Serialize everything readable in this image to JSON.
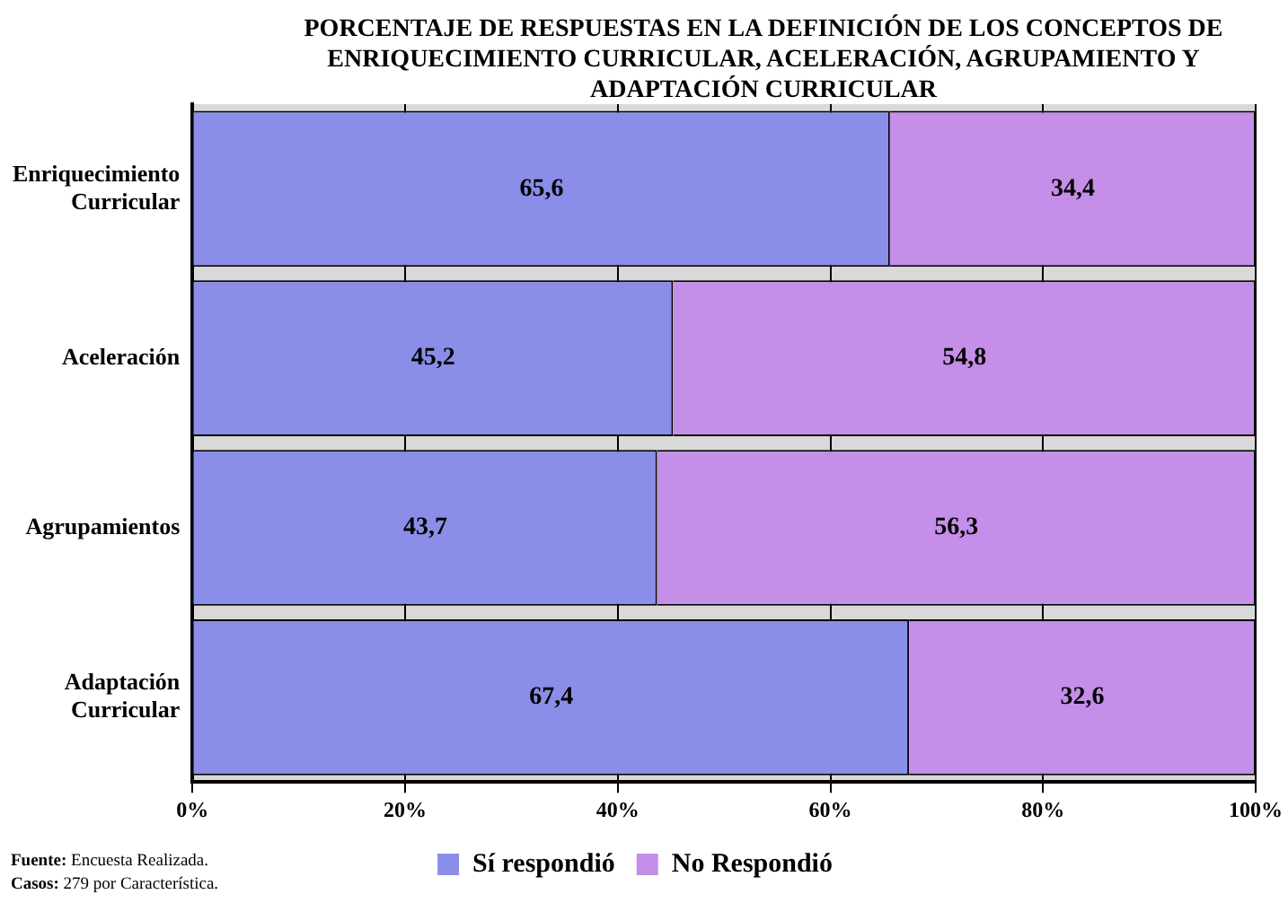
{
  "chart_data": {
    "type": "bar",
    "orientation": "horizontal",
    "stacked": true,
    "title": "PORCENTAJE DE RESPUESTAS EN LA DEFINICIÓN DE LOS CONCEPTOS DE ENRIQUECIMIENTO CURRICULAR, ACELERACIÓN, AGRUPAMIENTO Y ADAPTACIÓN CURRICULAR",
    "categories": [
      "Enriquecimiento Curricular",
      "Aceleración",
      "Agrupamientos",
      "Adaptación Curricular"
    ],
    "series": [
      {
        "name": "Sí respondió",
        "color": "#8a8ee8",
        "values": [
          65.6,
          45.2,
          43.7,
          67.4
        ],
        "value_labels": [
          "65,6",
          "45,2",
          "43,7",
          "67,4"
        ]
      },
      {
        "name": "No Respondió",
        "color": "#c58ee8",
        "values": [
          34.4,
          54.8,
          56.3,
          32.6
        ],
        "value_labels": [
          "34,4",
          "54,8",
          "56,3",
          "32,6"
        ]
      }
    ],
    "xlim": [
      0,
      100
    ],
    "xticks": [
      {
        "value": 0,
        "label": "0%"
      },
      {
        "value": 20,
        "label": "20%"
      },
      {
        "value": 40,
        "label": "40%"
      },
      {
        "value": 60,
        "label": "60%"
      },
      {
        "value": 80,
        "label": "80%"
      },
      {
        "value": 100,
        "label": "100%"
      }
    ],
    "grid": "x",
    "legend": "bottom",
    "annotations": [
      "Fuente: Encuesta Realizada.",
      "Casos: 279 por Característica."
    ]
  }
}
